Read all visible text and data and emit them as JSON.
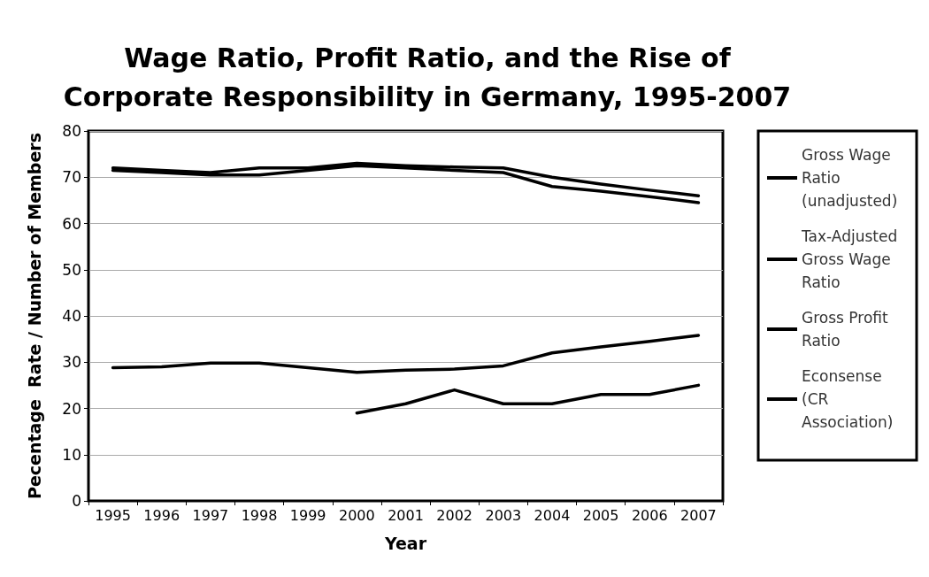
{
  "chart_data": {
    "type": "line",
    "title": "Wage Ratio, Profit Ratio, and the Rise of\nCorporate Responsibility in Germany, 1995-2007",
    "xlabel": "Year",
    "ylabel": "Pecentage  Rate / Number of Members",
    "categories": [
      "1995",
      "1996",
      "1997",
      "1998",
      "1999",
      "2000",
      "2001",
      "2002",
      "2003",
      "2004",
      "2005",
      "2006",
      "2007"
    ],
    "series": [
      {
        "name": "Gross Wage Ratio (unadjusted)",
        "color": "#000000",
        "values": [
          72,
          71.5,
          71,
          72,
          72,
          73,
          72.5,
          72.2,
          72,
          70,
          68.5,
          67.2,
          66
        ]
      },
      {
        "name": "Tax-Adjusted Gross Wage Ratio",
        "color": "#000000",
        "values": [
          71.5,
          71,
          70.5,
          70.5,
          71.5,
          72.5,
          72,
          71.5,
          71,
          68,
          67,
          65.8,
          64.5
        ]
      },
      {
        "name": "Gross Profit Ratio",
        "color": "#000000",
        "values": [
          28.8,
          29,
          29.8,
          29.8,
          28.8,
          27.8,
          28.3,
          28.5,
          29.2,
          32,
          33.3,
          34.5,
          35.8
        ]
      },
      {
        "name": "Econsense (CR Association)",
        "color": "#000000",
        "values": [
          null,
          null,
          null,
          null,
          null,
          19,
          21,
          24,
          21,
          21,
          23,
          23,
          25
        ]
      }
    ],
    "ylim": [
      0,
      80
    ],
    "yticks": [
      0,
      10,
      20,
      30,
      40,
      50,
      60,
      70,
      80
    ],
    "grid": "y",
    "legend": "right",
    "marker": "none",
    "line_style": "solid"
  }
}
